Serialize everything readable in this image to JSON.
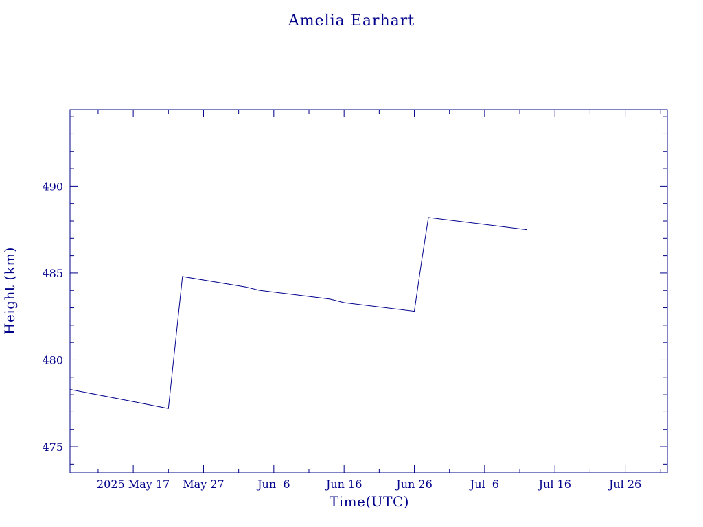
{
  "chart_data": {
    "type": "line",
    "title": "Amelia Earhart",
    "xlabel": "Time(UTC)",
    "ylabel": "Height (km)",
    "grid": false,
    "colors": {
      "axis": "#00008b",
      "line": "#00008b",
      "text": "#00008b",
      "background": "#ffffff"
    },
    "xlim": [
      "2025-05-08",
      "2025-08-01"
    ],
    "ylim": [
      473.5,
      494.4
    ],
    "x_ticks": [
      {
        "date": "2025-05-17",
        "label": "2025 May 17"
      },
      {
        "date": "2025-05-27",
        "label": "May 27"
      },
      {
        "date": "2025-06-06",
        "label": "Jun  6"
      },
      {
        "date": "2025-06-16",
        "label": "Jun 16"
      },
      {
        "date": "2025-06-26",
        "label": "Jun 26"
      },
      {
        "date": "2025-07-06",
        "label": "Jul  6"
      },
      {
        "date": "2025-07-16",
        "label": "Jul 16"
      },
      {
        "date": "2025-07-26",
        "label": "Jul 26"
      }
    ],
    "y_ticks": [
      {
        "value": 475,
        "label": "475"
      },
      {
        "value": 480,
        "label": "480"
      },
      {
        "value": 485,
        "label": "485"
      },
      {
        "value": 490,
        "label": "490"
      }
    ],
    "series": [
      {
        "x": [
          "2025-05-08",
          "2025-05-17",
          "2025-05-22",
          "2025-05-24",
          "2025-06-02",
          "2025-06-04",
          "2025-06-14",
          "2025-06-16",
          "2025-06-26",
          "2025-06-27",
          "2025-06-28",
          "2025-07-12"
        ],
        "y": [
          478.3,
          477.6,
          477.2,
          484.8,
          484.2,
          484.0,
          483.5,
          483.3,
          482.8,
          485.6,
          488.2,
          487.5
        ]
      }
    ]
  }
}
